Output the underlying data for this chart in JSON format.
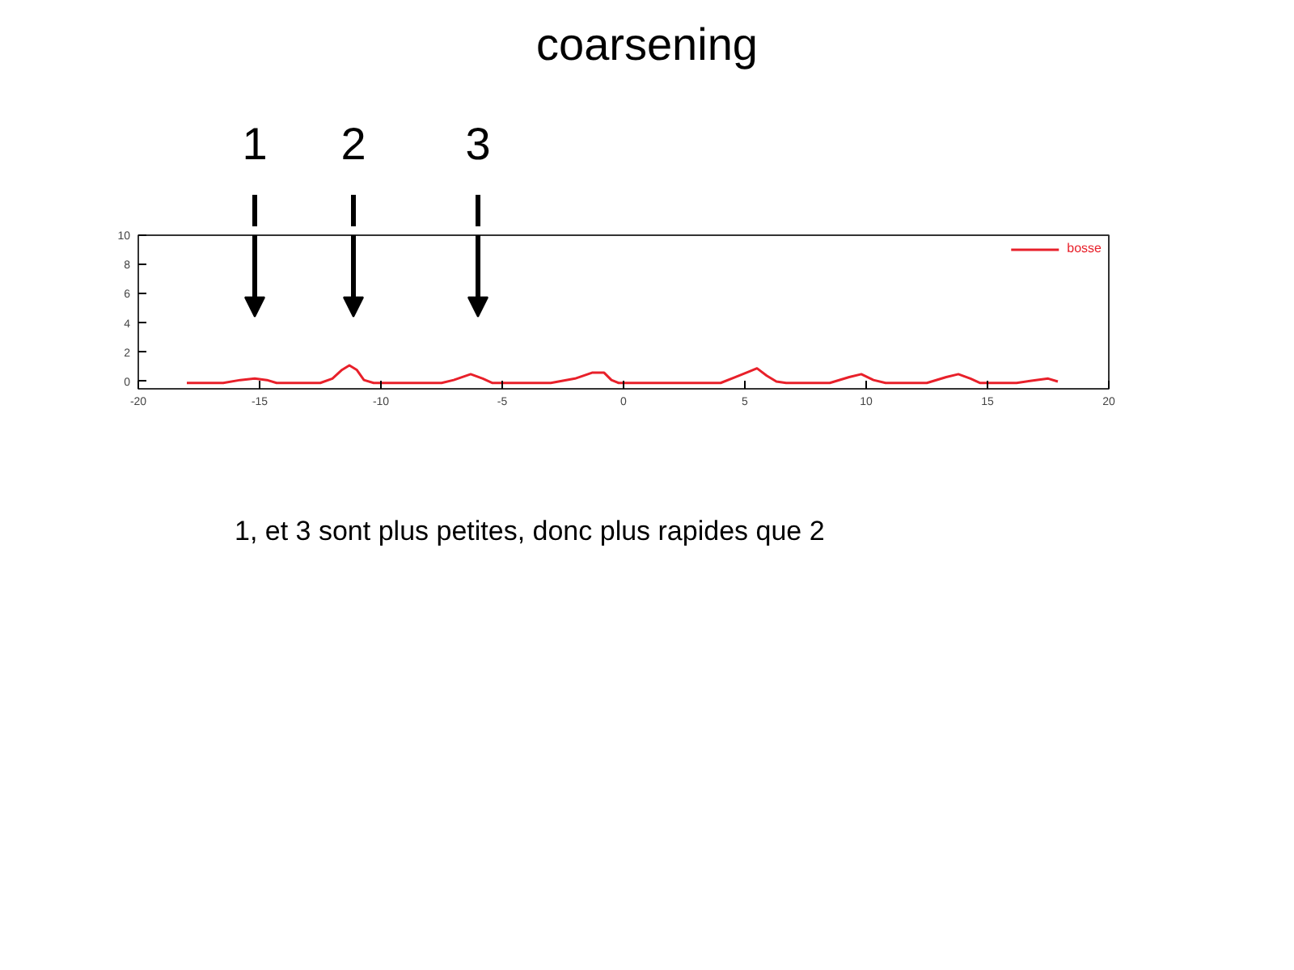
{
  "chart_data": {
    "type": "line",
    "title": "coarsening",
    "x": [
      -18,
      -16.5,
      -15.8,
      -15.2,
      -14.7,
      -14.3,
      -12.5,
      -12,
      -11.6,
      -11.3,
      -11,
      -10.7,
      -10.3,
      -7.5,
      -7,
      -6.3,
      -5.8,
      -5.4,
      -3,
      -2,
      -1.3,
      -0.8,
      -0.5,
      -0.2,
      4,
      4.6,
      5.2,
      5.5,
      5.9,
      6.3,
      6.7,
      8.5,
      9.3,
      9.8,
      10.3,
      10.8,
      12.5,
      13.3,
      13.8,
      14.3,
      14.7,
      16.2,
      17,
      17.5,
      17.9
    ],
    "series": [
      {
        "name": "bosse",
        "color": "#e8202a",
        "values": [
          -0.1,
          -0.1,
          0.1,
          0.2,
          0.1,
          -0.1,
          -0.1,
          0.2,
          0.8,
          1.1,
          0.8,
          0.1,
          -0.1,
          -0.1,
          0.1,
          0.5,
          0.2,
          -0.1,
          -0.1,
          0.2,
          0.6,
          0.6,
          0.1,
          -0.1,
          -0.1,
          0.3,
          0.7,
          0.9,
          0.4,
          0,
          -0.1,
          -0.1,
          0.3,
          0.5,
          0.1,
          -0.1,
          -0.1,
          0.3,
          0.5,
          0.2,
          -0.1,
          -0.1,
          0.1,
          0.2,
          0
        ]
      }
    ],
    "xlim": [
      -20,
      20
    ],
    "ylim": [
      -0.5,
      10
    ],
    "xticks": [
      -20,
      -15,
      -10,
      -5,
      0,
      5,
      10,
      15,
      20
    ],
    "yticks": [
      0,
      2,
      4,
      6,
      8,
      10
    ],
    "legend": "top right",
    "grid": false,
    "annotations": [
      "1",
      "2",
      "3",
      "1, et 3 sont plus petites, donc plus rapides que 2"
    ]
  }
}
